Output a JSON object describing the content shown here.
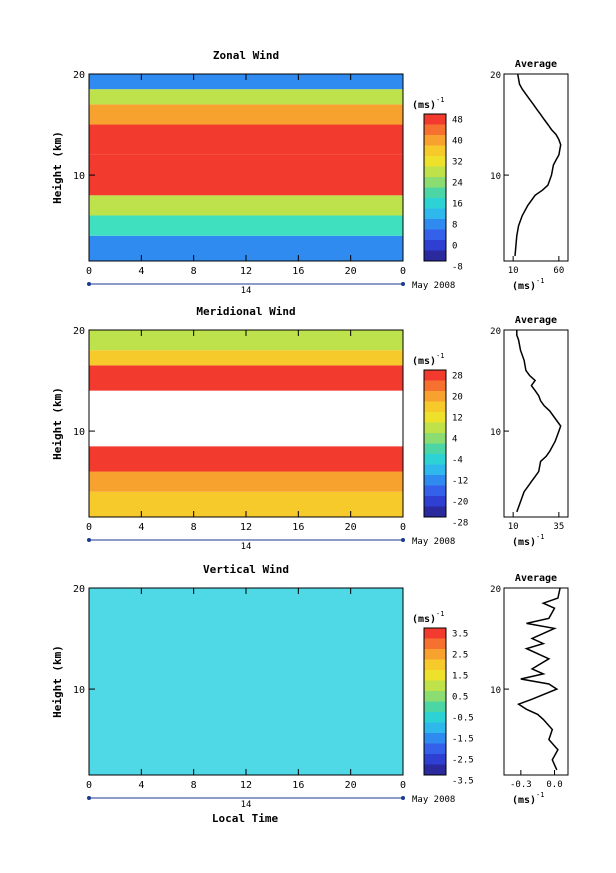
{
  "figure": {
    "xaxis_label": "Local Time",
    "date_label": "May 2008",
    "date_day": "14"
  },
  "chart_data": [
    {
      "type": "heatmap",
      "title": "Zonal Wind",
      "ylabel": "Height (km)",
      "xticks": [
        "0",
        "4",
        "8",
        "12",
        "16",
        "20",
        "0"
      ],
      "yticks": [
        "20",
        "10"
      ],
      "xlim": [
        0,
        24
      ],
      "ylim": [
        1.5,
        20
      ],
      "colorbar": {
        "unit_text": "(ms",
        "unit_exp": "-1",
        "ticks": [
          "48",
          "40",
          "32",
          "24",
          "16",
          "8",
          "0",
          "-8"
        ],
        "colors": [
          "#f23a2f",
          "#f6712f",
          "#f7a12e",
          "#f7ca2c",
          "#eee12c",
          "#bfe24b",
          "#8bdd71",
          "#4cd6a5",
          "#2dd3d4",
          "#2eb8ec",
          "#2f8bf0",
          "#3561ea",
          "#2f3fd2",
          "#2a2a9e"
        ]
      },
      "bands": [
        {
          "y0": 1.5,
          "y1": 4,
          "value": 8,
          "color": "#2f8bf0"
        },
        {
          "y0": 4,
          "y1": 6,
          "value": 16,
          "color": "#3fe0c0"
        },
        {
          "y0": 6,
          "y1": 8,
          "value": 30,
          "color": "#bde24c"
        },
        {
          "y0": 8,
          "y1": 12,
          "value": 48,
          "color": "#f23a2f"
        },
        {
          "y0": 12,
          "y1": 15,
          "value": 46,
          "color": "#f23a2f"
        },
        {
          "y0": 15,
          "y1": 17,
          "value": 36,
          "color": "#f7a12e"
        },
        {
          "y0": 17,
          "y1": 18.5,
          "value": 24,
          "color": "#bde24c"
        },
        {
          "y0": 18.5,
          "y1": 20,
          "value": 12,
          "color": "#2f8bf0"
        }
      ],
      "profile": {
        "title": "Average",
        "xticks": [
          "10",
          "60"
        ],
        "xlim": [
          0,
          70
        ],
        "unit_text": "(ms",
        "unit_exp": "-1",
        "x": [
          12,
          13,
          14,
          16,
          20,
          26,
          34,
          42,
          48,
          52,
          54,
          57,
          60,
          61,
          62,
          60,
          57,
          52,
          48,
          44,
          40,
          36,
          32,
          28,
          24,
          20,
          17,
          15
        ],
        "y": [
          2,
          3,
          4,
          5,
          6,
          7,
          8,
          8.5,
          9,
          10,
          11,
          11.5,
          12,
          12.5,
          13,
          13.5,
          14,
          14.5,
          15,
          15.5,
          16,
          16.5,
          17,
          17.5,
          18,
          18.5,
          19,
          20
        ]
      }
    },
    {
      "type": "heatmap",
      "title": "Meridional Wind",
      "ylabel": "Height (km)",
      "xticks": [
        "0",
        "4",
        "8",
        "12",
        "16",
        "20",
        "0"
      ],
      "yticks": [
        "20",
        "10"
      ],
      "xlim": [
        0,
        24
      ],
      "ylim": [
        1.5,
        20
      ],
      "colorbar": {
        "unit_text": "(ms",
        "unit_exp": "-1",
        "ticks": [
          "28",
          "20",
          "12",
          "4",
          "-4",
          "-12",
          "-20",
          "-28"
        ],
        "colors": [
          "#f23a2f",
          "#f6712f",
          "#f7a12e",
          "#f7ca2c",
          "#eee12c",
          "#bfe24b",
          "#8bdd71",
          "#4cd6a5",
          "#2dd3d4",
          "#2eb8ec",
          "#2f8bf0",
          "#3561ea",
          "#2f3fd2",
          "#2a2a9e"
        ]
      },
      "bands": [
        {
          "y0": 1.5,
          "y1": 4,
          "value": 20,
          "color": "#f7ca2c"
        },
        {
          "y0": 4,
          "y1": 6,
          "value": 22,
          "color": "#f7a12e"
        },
        {
          "y0": 6,
          "y1": 8.5,
          "value": 28,
          "color": "#f23a2f"
        },
        {
          "y0": 8.5,
          "y1": 14,
          "value": 30,
          "color": "#ffffff"
        },
        {
          "y0": 14,
          "y1": 16.5,
          "value": 28,
          "color": "#f23a2f"
        },
        {
          "y0": 16.5,
          "y1": 18,
          "value": 20,
          "color": "#f7ca2c"
        },
        {
          "y0": 18,
          "y1": 20,
          "value": 10,
          "color": "#bde24c"
        }
      ],
      "profile": {
        "title": "Average",
        "xticks": [
          "10",
          "35"
        ],
        "xlim": [
          5,
          40
        ],
        "unit_text": "(ms",
        "unit_exp": "-1",
        "x": [
          12,
          14,
          16,
          18,
          20,
          22,
          24,
          25,
          28,
          30,
          33,
          35,
          36,
          34,
          30,
          27,
          25,
          24,
          22,
          20,
          22,
          19,
          17,
          16,
          14,
          13,
          12,
          12
        ],
        "y": [
          2,
          3,
          4,
          4.5,
          5,
          5.5,
          6,
          7,
          7.5,
          8,
          9,
          10,
          10.5,
          11,
          12,
          12.5,
          13,
          13.5,
          14,
          14.5,
          15,
          15.5,
          16,
          17,
          18,
          19,
          19.5,
          20
        ]
      }
    },
    {
      "type": "heatmap",
      "title": "Vertical Wind",
      "ylabel": "Height (km)",
      "xticks": [
        "0",
        "4",
        "8",
        "12",
        "16",
        "20",
        "0"
      ],
      "yticks": [
        "20",
        "10"
      ],
      "xlim": [
        0,
        24
      ],
      "ylim": [
        1.5,
        20
      ],
      "colorbar": {
        "unit_text": "(ms",
        "unit_exp": "-1",
        "ticks": [
          "3.5",
          "2.5",
          "1.5",
          "0.5",
          "-0.5",
          "-1.5",
          "-2.5",
          "-3.5"
        ],
        "colors": [
          "#f23a2f",
          "#f6712f",
          "#f7a12e",
          "#f7ca2c",
          "#eee12c",
          "#bfe24b",
          "#8bdd71",
          "#4cd6a5",
          "#2dd3d4",
          "#2eb8ec",
          "#2f8bf0",
          "#3561ea",
          "#2f3fd2",
          "#2a2a9e"
        ]
      },
      "bands": [
        {
          "y0": 1.5,
          "y1": 20,
          "value": 0,
          "color": "#4fd8e6"
        }
      ],
      "profile": {
        "title": "Average",
        "xticks": [
          "-0.3",
          "0.0"
        ],
        "xlim": [
          -0.45,
          0.12
        ],
        "unit_text": "(ms",
        "unit_exp": "-1",
        "x": [
          0.02,
          -0.02,
          0.03,
          -0.05,
          -0.02,
          -0.1,
          -0.15,
          -0.25,
          -0.32,
          -0.2,
          0.02,
          -0.05,
          -0.3,
          -0.1,
          -0.2,
          -0.05,
          -0.25,
          -0.1,
          -0.2,
          0.0,
          -0.25,
          -0.05,
          0.0,
          -0.1,
          0.03,
          0.05
        ],
        "y": [
          2,
          3,
          4,
          5,
          6,
          7,
          7.5,
          8,
          8.5,
          9,
          10,
          10.5,
          11,
          11.5,
          12,
          13,
          14,
          14.5,
          15,
          16,
          16.5,
          17,
          18,
          18.5,
          19,
          20
        ]
      }
    }
  ]
}
